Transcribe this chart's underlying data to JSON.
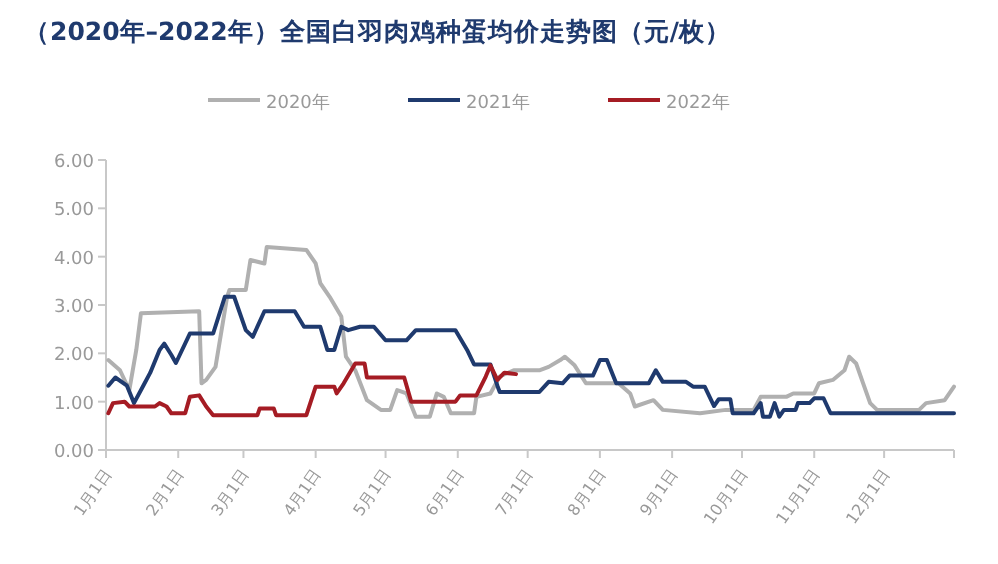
{
  "chart_data": {
    "type": "line",
    "title": "（2020年–2022年）全国白羽肉鸡种蛋均价走势图（元/枚）",
    "xlim": [
      "--01-01",
      "--12-31"
    ],
    "xticks": [
      {
        "value": "--01-01",
        "label": "1月1日"
      },
      {
        "value": "--02-01",
        "label": "2月1日"
      },
      {
        "value": "--03-01",
        "label": "3月1日"
      },
      {
        "value": "--04-01",
        "label": "4月1日"
      },
      {
        "value": "--05-01",
        "label": "5月1日"
      },
      {
        "value": "--06-01",
        "label": "6月1日"
      },
      {
        "value": "--07-01",
        "label": "7月1日"
      },
      {
        "value": "--08-01",
        "label": "8月1日"
      },
      {
        "value": "--09-01",
        "label": "9月1日"
      },
      {
        "value": "--10-01",
        "label": "10月1日"
      },
      {
        "value": "--11-01",
        "label": "11月1日"
      },
      {
        "value": "--12-01",
        "label": "12月1日"
      },
      {
        "value": "--12-31",
        "label": null
      }
    ],
    "ylim": [
      0,
      6
    ],
    "yticks": [
      {
        "value": 0,
        "label": "0.00"
      },
      {
        "value": 1,
        "label": "1.00"
      },
      {
        "value": 2,
        "label": "2.00"
      },
      {
        "value": 3,
        "label": "3.00"
      },
      {
        "value": 4,
        "label": "4.00"
      },
      {
        "value": 5,
        "label": "5.00"
      },
      {
        "value": 6,
        "label": "6.00"
      }
    ],
    "legend": "top",
    "grid": false,
    "marker": "none",
    "line_style": "solid",
    "series": [
      {
        "name": "2020年",
        "color": "#b0b0b0",
        "x": [
          "--01-02",
          "--01-07",
          "--01-11",
          "--01-14",
          "--01-16",
          "--02-10",
          "--02-11",
          "--02-13",
          "--02-17",
          "--02-22",
          "--02-23",
          "--03-02",
          "--03-04",
          "--03-10",
          "--03-11",
          "--03-28",
          "--04-01",
          "--04-03",
          "--04-07",
          "--04-12",
          "--04-14",
          "--04-18",
          "--04-23",
          "--04-29",
          "--05-03",
          "--05-06",
          "--05-10",
          "--05-14",
          "--05-20",
          "--05-23",
          "--05-26",
          "--05-29",
          "--06-08",
          "--06-09",
          "--06-15",
          "--06-19",
          "--06-25",
          "--07-06",
          "--07-10",
          "--07-15",
          "--07-17",
          "--07-21",
          "--07-26",
          "--08-09",
          "--08-14",
          "--08-16",
          "--08-24",
          "--08-28",
          "--09-13",
          "--09-24",
          "--10-06",
          "--10-09",
          "--10-20",
          "--10-23",
          "--11-01",
          "--11-03",
          "--11-09",
          "--11-14",
          "--11-16",
          "--11-19",
          "--11-22",
          "--11-25",
          "--11-28",
          "--12-16",
          "--12-19",
          "--12-27",
          "--12-31"
        ],
        "values": [
          1.86,
          1.65,
          1.24,
          2.07,
          2.83,
          2.87,
          1.38,
          1.45,
          1.72,
          3.17,
          3.31,
          3.31,
          3.93,
          3.86,
          4.2,
          4.14,
          3.86,
          3.45,
          3.17,
          2.76,
          1.93,
          1.65,
          1.03,
          0.83,
          0.83,
          1.24,
          1.17,
          0.69,
          0.69,
          1.17,
          1.1,
          0.76,
          0.76,
          1.1,
          1.17,
          1.52,
          1.65,
          1.65,
          1.72,
          1.86,
          1.93,
          1.76,
          1.38,
          1.38,
          1.17,
          0.9,
          1.03,
          0.83,
          0.76,
          0.83,
          0.83,
          1.1,
          1.1,
          1.17,
          1.17,
          1.38,
          1.45,
          1.65,
          1.93,
          1.79,
          1.38,
          0.97,
          0.83,
          0.83,
          0.97,
          1.03,
          1.31
        ]
      },
      {
        "name": "2021年",
        "color": "#1f3a6e",
        "x": [
          "--01-02",
          "--01-05",
          "--01-10",
          "--01-13",
          "--01-17",
          "--01-20",
          "--01-24",
          "--01-26",
          "--01-29",
          "--01-31",
          "--02-06",
          "--02-16",
          "--02-21",
          "--02-25",
          "--03-02",
          "--03-05",
          "--03-10",
          "--03-23",
          "--03-27",
          "--04-03",
          "--04-06",
          "--04-09",
          "--04-12",
          "--04-15",
          "--04-20",
          "--04-26",
          "--05-01",
          "--05-10",
          "--05-14",
          "--05-31",
          "--06-05",
          "--06-08",
          "--06-15",
          "--06-18",
          "--06-19",
          "--07-06",
          "--07-10",
          "--07-16",
          "--07-19",
          "--07-29",
          "--08-01",
          "--08-04",
          "--08-08",
          "--08-22",
          "--08-25",
          "--08-28",
          "--09-07",
          "--09-10",
          "--09-15",
          "--09-19",
          "--09-21",
          "--09-26",
          "--09-27",
          "--10-06",
          "--10-09",
          "--10-10",
          "--10-13",
          "--10-15",
          "--10-17",
          "--10-19",
          "--10-24",
          "--10-25",
          "--10-30",
          "--11-01",
          "--11-05",
          "--11-08",
          "--12-31"
        ],
        "values": [
          1.33,
          1.5,
          1.33,
          0.97,
          1.33,
          1.6,
          2.07,
          2.2,
          1.97,
          1.8,
          2.41,
          2.41,
          3.17,
          3.17,
          2.48,
          2.34,
          2.87,
          2.87,
          2.55,
          2.55,
          2.07,
          2.07,
          2.55,
          2.48,
          2.55,
          2.55,
          2.27,
          2.27,
          2.48,
          2.48,
          2.07,
          1.77,
          1.77,
          1.33,
          1.2,
          1.2,
          1.41,
          1.38,
          1.54,
          1.54,
          1.86,
          1.86,
          1.38,
          1.38,
          1.65,
          1.41,
          1.41,
          1.31,
          1.31,
          0.91,
          1.05,
          1.05,
          0.76,
          0.76,
          0.97,
          0.69,
          0.69,
          0.97,
          0.69,
          0.83,
          0.83,
          0.97,
          0.97,
          1.07,
          1.07,
          0.76,
          0.76
        ]
      },
      {
        "name": "2022年",
        "color": "#a51c24",
        "x": [
          "--01-02",
          "--01-04",
          "--01-09",
          "--01-11",
          "--01-22",
          "--01-24",
          "--01-27",
          "--01-29",
          "--02-04",
          "--02-06",
          "--02-10",
          "--02-13",
          "--02-16",
          "--03-07",
          "--03-08",
          "--03-14",
          "--03-15",
          "--03-28",
          "--04-01",
          "--04-09",
          "--04-10",
          "--04-13",
          "--04-18",
          "--04-22",
          "--04-23",
          "--05-09",
          "--05-12",
          "--05-31",
          "--06-02",
          "--06-09",
          "--06-13",
          "--06-15",
          "--06-18",
          "--06-21",
          "--06-26"
        ],
        "values": [
          0.76,
          0.97,
          1.0,
          0.9,
          0.9,
          0.97,
          0.9,
          0.76,
          0.76,
          1.1,
          1.13,
          0.9,
          0.72,
          0.72,
          0.86,
          0.86,
          0.72,
          0.72,
          1.31,
          1.31,
          1.17,
          1.38,
          1.79,
          1.79,
          1.5,
          1.5,
          1.0,
          1.0,
          1.13,
          1.13,
          1.52,
          1.75,
          1.45,
          1.6,
          1.57
        ]
      }
    ]
  }
}
